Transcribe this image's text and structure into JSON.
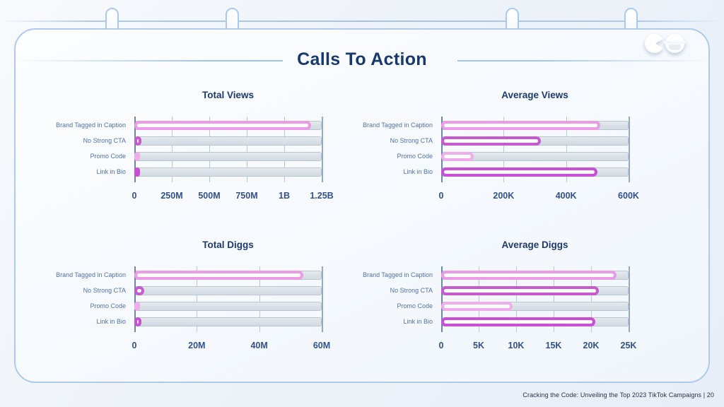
{
  "slide": {
    "title": "Calls To Action",
    "footer": "Cracking the Code: Unveiling the Top 2023 TikTok Campaigns |  20"
  },
  "logo": {
    "icons": [
      "pacman-icon",
      "smiley-icon"
    ]
  },
  "colors": {
    "title_navy": "#17396d",
    "chart_title_navy": "#1d3a6e",
    "category_label_blue": "#4f72a9",
    "tick_label_blue": "#32508c",
    "track_gray": "#d9e0e6",
    "gridline_blue": "#b6c9de",
    "border_blue": "#aecbee",
    "bar_light_pink": "#EC9CE6",
    "bar_magenta": "#C55BCE",
    "bar_pale_pink": "#EFAEEB",
    "bar_vivid_magenta": "#C94FD6"
  },
  "chart_data": [
    {
      "type": "bar",
      "orientation": "horizontal",
      "title": "Total Views",
      "categories": [
        "Brand Tagged in Caption",
        "No Strong CTA",
        "Promo Code",
        "Link in Bio"
      ],
      "values": [
        1180000000,
        45000000,
        12000000,
        40000000
      ],
      "bar_colors": [
        "#EC9CE6",
        "#C55BCE",
        "#EFAEEB",
        "#C94FD6"
      ],
      "xlim": [
        0,
        1250000000
      ],
      "grid": true,
      "legend": false,
      "ticks": [
        {
          "value": 0,
          "label": "0"
        },
        {
          "value": 250000000,
          "label": "250M"
        },
        {
          "value": 500000000,
          "label": "500M"
        },
        {
          "value": 750000000,
          "label": "750M"
        },
        {
          "value": 1000000000,
          "label": "1B"
        },
        {
          "value": 1250000000,
          "label": "1.25B"
        }
      ]
    },
    {
      "type": "bar",
      "orientation": "horizontal",
      "title": "Average Views",
      "categories": [
        "Brand Tagged in Caption",
        "No Strong CTA",
        "Promo Code",
        "Link in Bio"
      ],
      "values": [
        510000,
        320000,
        105000,
        500000
      ],
      "bar_colors": [
        "#EC9CE6",
        "#C55BCE",
        "#EFAEEB",
        "#C94FD6"
      ],
      "xlim": [
        0,
        600000
      ],
      "grid": true,
      "legend": false,
      "ticks": [
        {
          "value": 0,
          "label": "0"
        },
        {
          "value": 200000,
          "label": "200K"
        },
        {
          "value": 400000,
          "label": "400K"
        },
        {
          "value": 600000,
          "label": "600K"
        }
      ]
    },
    {
      "type": "bar",
      "orientation": "horizontal",
      "title": "Total Diggs",
      "categories": [
        "Brand Tagged in Caption",
        "No Strong CTA",
        "Promo Code",
        "Link in Bio"
      ],
      "values": [
        54000000,
        3200000,
        1000000,
        2300000
      ],
      "bar_colors": [
        "#EC9CE6",
        "#C55BCE",
        "#EFAEEB",
        "#C94FD6"
      ],
      "xlim": [
        0,
        60000000
      ],
      "grid": true,
      "legend": false,
      "ticks": [
        {
          "value": 0,
          "label": "0"
        },
        {
          "value": 20000000,
          "label": "20M"
        },
        {
          "value": 40000000,
          "label": "40M"
        },
        {
          "value": 60000000,
          "label": "60M"
        }
      ]
    },
    {
      "type": "bar",
      "orientation": "horizontal",
      "title": "Average Diggs",
      "categories": [
        "Brand Tagged in Caption",
        "No Strong CTA",
        "Promo Code",
        "Link in Bio"
      ],
      "values": [
        23400,
        21000,
        9500,
        20600
      ],
      "bar_colors": [
        "#EC9CE6",
        "#C55BCE",
        "#EFAEEB",
        "#C94FD6"
      ],
      "xlim": [
        0,
        25000
      ],
      "grid": true,
      "legend": false,
      "ticks": [
        {
          "value": 0,
          "label": "0"
        },
        {
          "value": 5000,
          "label": "5K"
        },
        {
          "value": 10000,
          "label": "10K"
        },
        {
          "value": 15000,
          "label": "15K"
        },
        {
          "value": 20000,
          "label": "20K"
        },
        {
          "value": 25000,
          "label": "25K"
        }
      ]
    }
  ]
}
